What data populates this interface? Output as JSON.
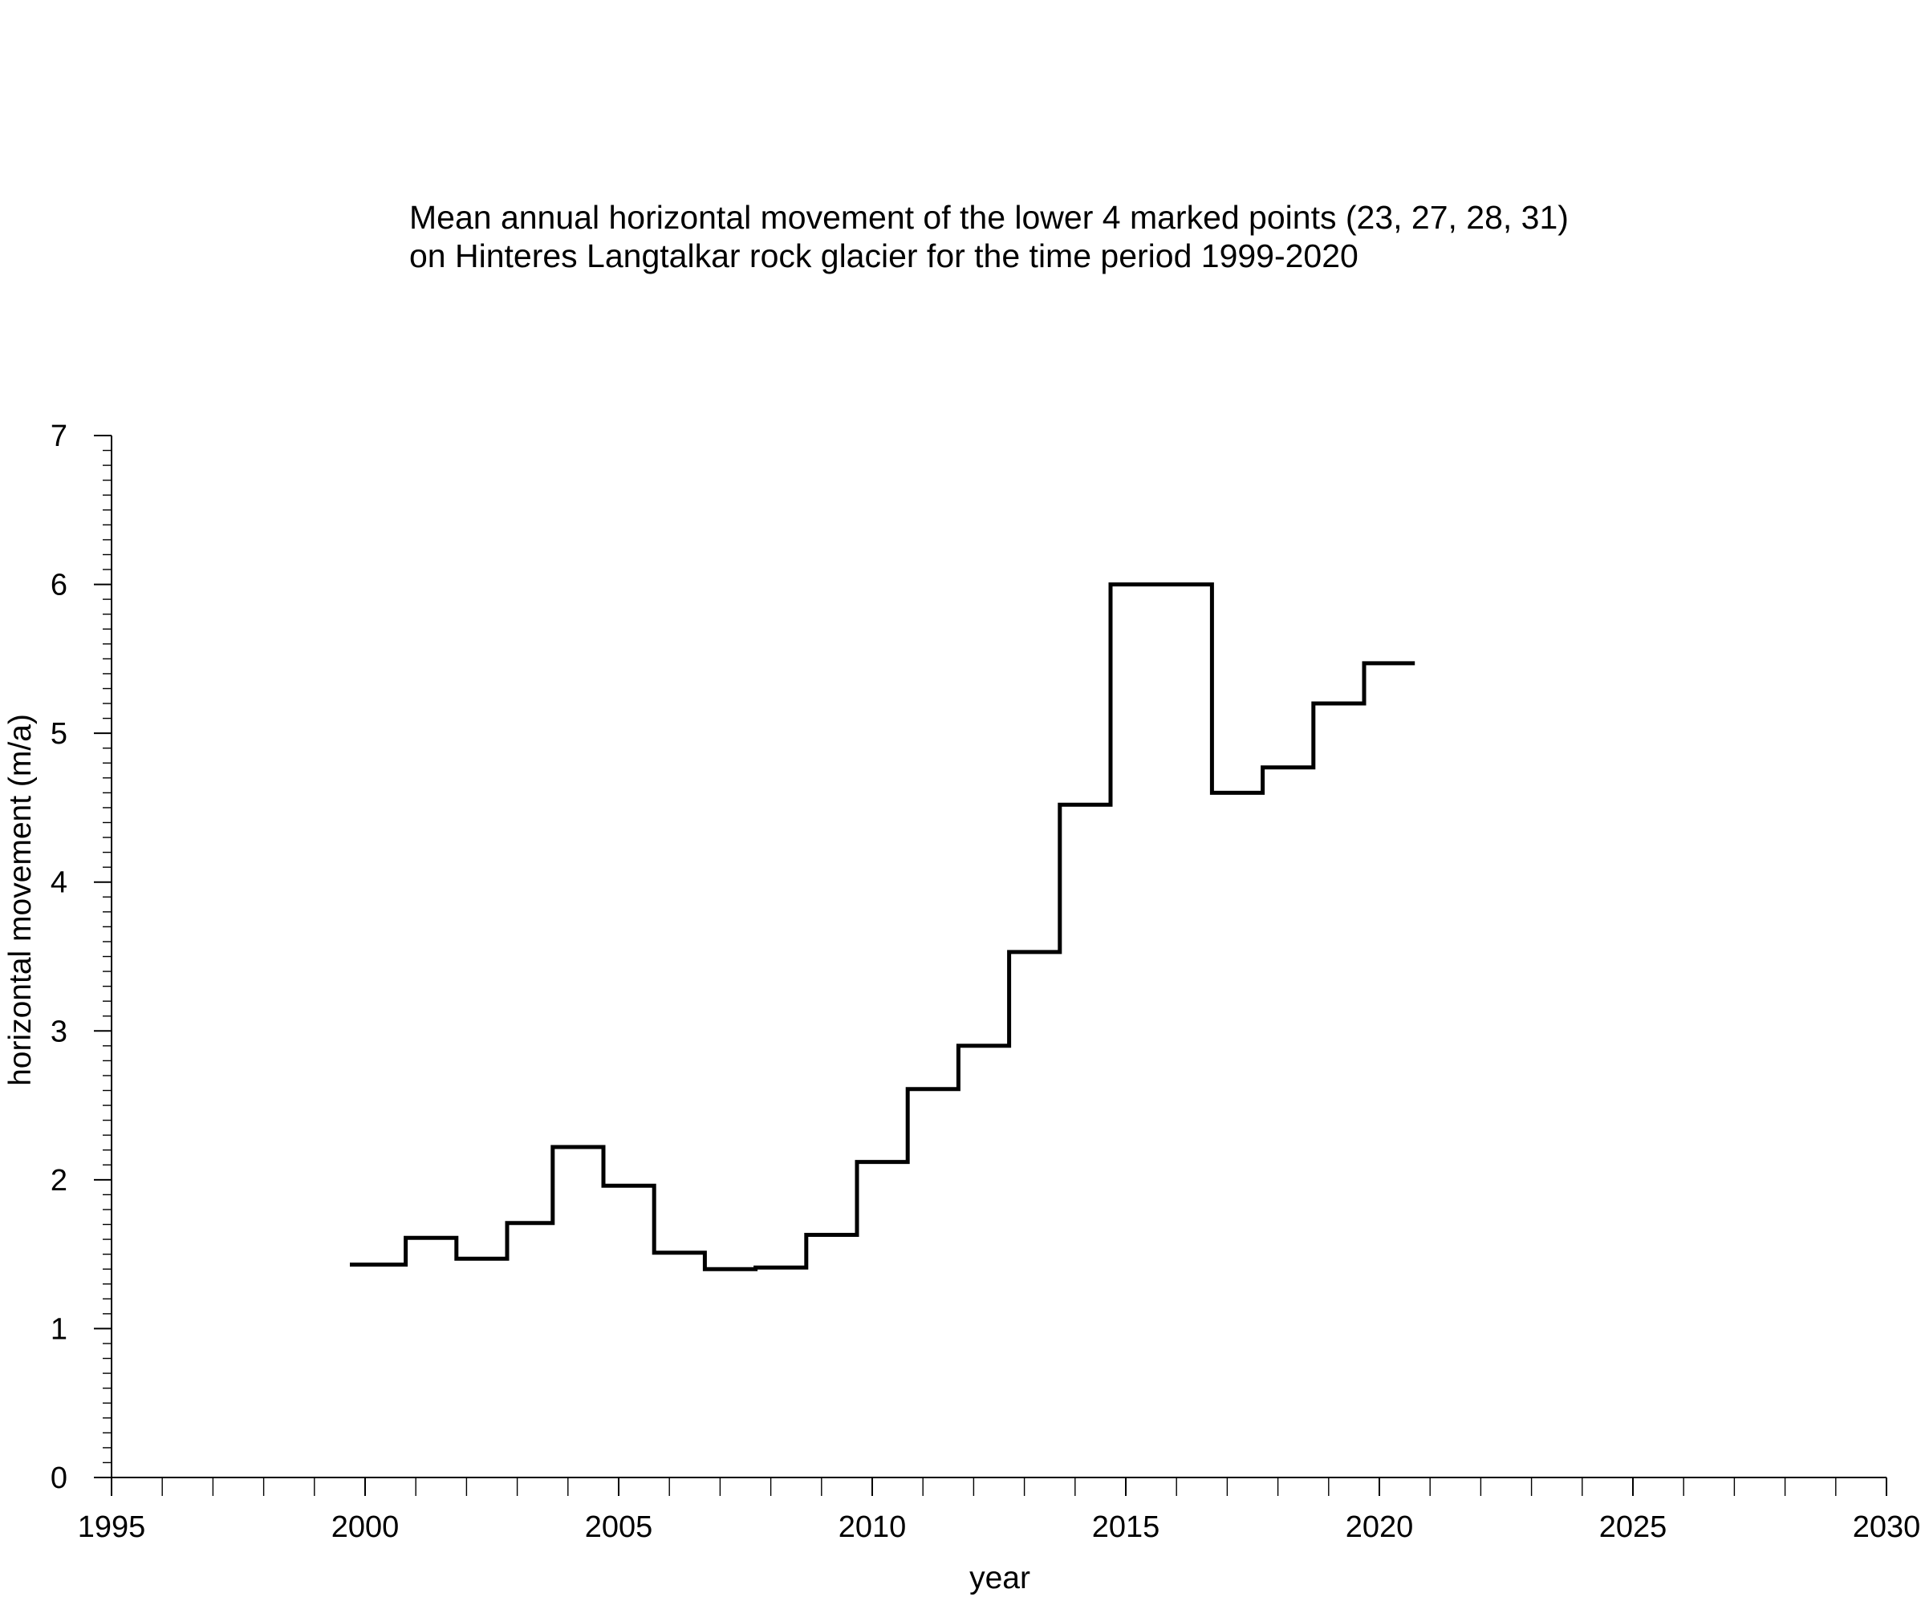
{
  "chart_data": {
    "type": "line",
    "step": true,
    "title_lines": [
      "Mean annual horizontal movement of the lower 4 marked points (23, 27, 28, 31)",
      "on Hinteres Langtalkar rock glacier for the time period 1999-2020"
    ],
    "xlabel": "year",
    "ylabel": "horizontal movement (m/a)",
    "xlim": [
      1995,
      2030
    ],
    "ylim": [
      0,
      7
    ],
    "xticks": [
      1995,
      2000,
      2005,
      2010,
      2015,
      2020,
      2025,
      2030
    ],
    "yticks": [
      0,
      1,
      2,
      3,
      4,
      5,
      6,
      7
    ],
    "x_minor_step": 1,
    "y_minor_step": 0.1,
    "grid": false,
    "series": [
      {
        "intervals": [
          {
            "start": 1999.7,
            "end": 2000.8,
            "value": 1.43
          },
          {
            "start": 2000.8,
            "end": 2001.8,
            "value": 1.61
          },
          {
            "start": 2001.8,
            "end": 2002.8,
            "value": 1.47
          },
          {
            "start": 2002.8,
            "end": 2003.7,
            "value": 1.71
          },
          {
            "start": 2003.7,
            "end": 2004.7,
            "value": 2.22
          },
          {
            "start": 2004.7,
            "end": 2005.7,
            "value": 1.96
          },
          {
            "start": 2005.7,
            "end": 2006.7,
            "value": 1.51
          },
          {
            "start": 2006.7,
            "end": 2007.7,
            "value": 1.4
          },
          {
            "start": 2007.7,
            "end": 2008.7,
            "value": 1.41
          },
          {
            "start": 2008.7,
            "end": 2009.7,
            "value": 1.63
          },
          {
            "start": 2009.7,
            "end": 2010.7,
            "value": 2.12
          },
          {
            "start": 2010.7,
            "end": 2011.7,
            "value": 2.61
          },
          {
            "start": 2011.7,
            "end": 2012.7,
            "value": 2.9
          },
          {
            "start": 2012.7,
            "end": 2013.7,
            "value": 3.53
          },
          {
            "start": 2013.7,
            "end": 2014.7,
            "value": 4.52
          },
          {
            "start": 2014.7,
            "end": 2016.7,
            "value": 6.0
          },
          {
            "start": 2016.7,
            "end": 2017.7,
            "value": 4.6
          },
          {
            "start": 2017.7,
            "end": 2018.7,
            "value": 4.77
          },
          {
            "start": 2018.7,
            "end": 2019.7,
            "value": 5.2
          },
          {
            "start": 2019.7,
            "end": 2020.7,
            "value": 5.47
          }
        ]
      }
    ]
  }
}
